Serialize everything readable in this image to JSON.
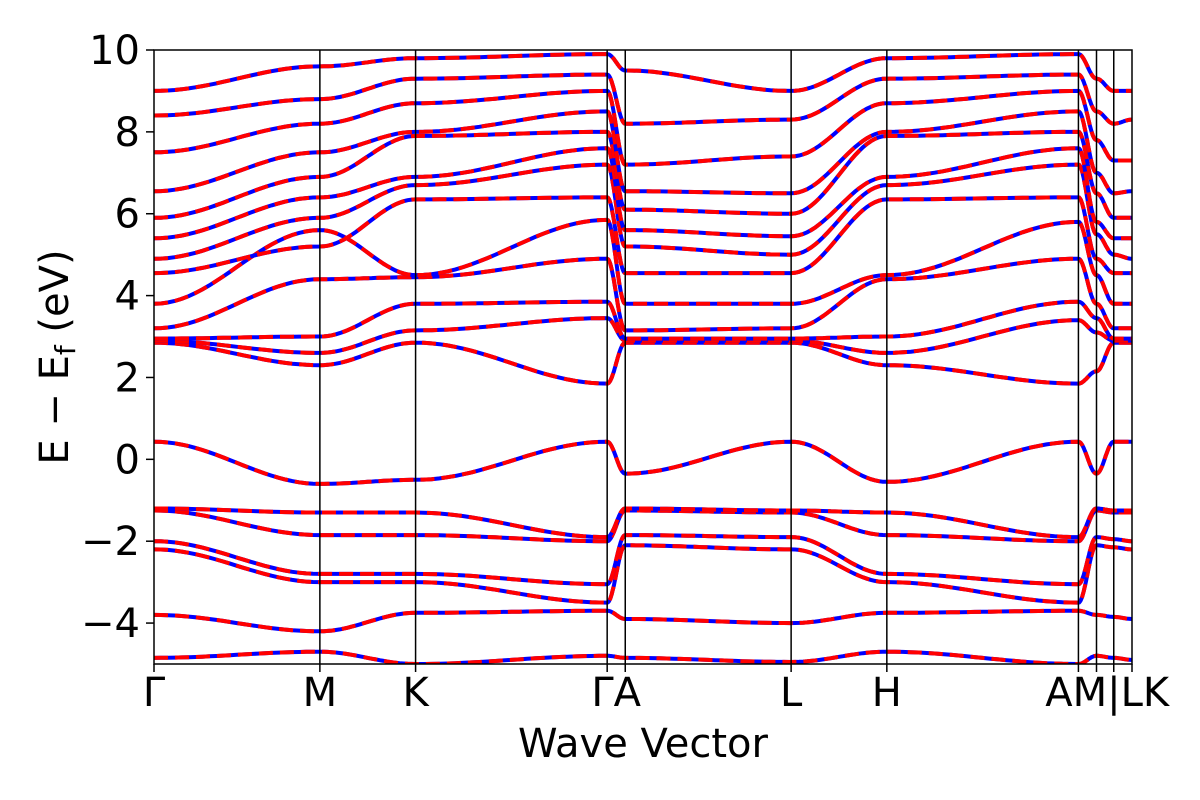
{
  "chart_data": {
    "type": "line",
    "xlabel": "Wave Vector",
    "ylabel": "E − E_f (eV)",
    "ylabel_main": "E − E",
    "ylabel_sub": "f",
    "ylabel_unit": " (eV)",
    "ylim": [
      -5,
      10
    ],
    "yticks": [
      -4,
      -2,
      0,
      2,
      4,
      6,
      8,
      10
    ],
    "ytick_labels": [
      "−4",
      "−2",
      "0",
      "2",
      "4",
      "6",
      "8",
      "10"
    ],
    "high_symmetry_points": [
      {
        "label": "Γ",
        "x": 0.0
      },
      {
        "label": "M",
        "x": 1.0
      },
      {
        "label": "K",
        "x": 1.577
      },
      {
        "label": "Γ",
        "x": 2.732
      },
      {
        "label": "A",
        "x": 2.841
      },
      {
        "label": "L",
        "x": 3.841
      },
      {
        "label": "H",
        "x": 4.418
      },
      {
        "label": "A",
        "x": 5.573
      },
      {
        "label": "M",
        "x": 5.682
      },
      {
        "label": "L",
        "x": 5.786
      },
      {
        "label": "K",
        "x": 5.896
      }
    ],
    "xtick_labels": [
      "Γ",
      "M",
      "K",
      "ΓA",
      "L",
      "H",
      "AM|LK"
    ],
    "grid": false,
    "series": [
      {
        "name": "",
        "color": "#0000ff",
        "style": "solid"
      },
      {
        "name": "",
        "color": "#ff0000",
        "style": "dashed"
      }
    ],
    "bands": [
      [
        -4.85,
        -4.7,
        -5.0,
        -4.8,
        -4.85,
        -4.95,
        -4.7,
        -5.0,
        -4.8,
        -4.85,
        -4.9
      ],
      [
        -3.8,
        -4.2,
        -3.75,
        -3.7,
        -3.9,
        -4.0,
        -3.75,
        -3.7,
        -3.8,
        -3.85,
        -3.9
      ],
      [
        -2.2,
        -3.0,
        -3.0,
        -3.5,
        -2.1,
        -2.2,
        -3.0,
        -3.5,
        -2.1,
        -2.15,
        -2.2
      ],
      [
        -2.0,
        -2.8,
        -2.8,
        -3.05,
        -1.85,
        -1.9,
        -2.8,
        -3.05,
        -1.9,
        -1.95,
        -2.0
      ],
      [
        -1.25,
        -1.85,
        -1.85,
        -2.0,
        -1.25,
        -1.3,
        -1.85,
        -2.0,
        -1.25,
        -1.3,
        -1.3
      ],
      [
        -1.2,
        -1.3,
        -1.3,
        -1.9,
        -1.2,
        -1.25,
        -1.3,
        -1.9,
        -1.2,
        -1.25,
        -1.25
      ],
      [
        0.43,
        -0.6,
        -0.5,
        0.43,
        -0.35,
        0.43,
        -0.55,
        0.43,
        -0.35,
        0.43,
        0.43
      ],
      [
        2.85,
        2.3,
        2.85,
        1.85,
        2.85,
        2.85,
        2.3,
        1.85,
        2.15,
        2.85,
        2.85
      ],
      [
        2.9,
        2.6,
        3.15,
        3.45,
        2.9,
        2.9,
        2.6,
        3.4,
        3.1,
        2.9,
        2.9
      ],
      [
        2.95,
        3.0,
        3.8,
        3.85,
        2.95,
        2.95,
        3.0,
        3.85,
        3.45,
        2.95,
        2.95
      ],
      [
        3.2,
        4.4,
        4.45,
        4.9,
        3.15,
        3.2,
        4.4,
        4.9,
        3.8,
        3.2,
        3.2
      ],
      [
        3.8,
        5.6,
        4.5,
        5.85,
        3.8,
        3.8,
        4.5,
        5.8,
        4.5,
        3.8,
        3.8
      ],
      [
        4.55,
        5.2,
        6.35,
        6.4,
        4.55,
        4.55,
        6.35,
        6.4,
        4.9,
        4.55,
        4.55
      ],
      [
        4.9,
        5.9,
        6.7,
        7.2,
        5.2,
        5.0,
        6.7,
        7.2,
        5.5,
        5.0,
        4.9
      ],
      [
        5.4,
        6.4,
        6.9,
        7.6,
        5.6,
        5.45,
        6.9,
        7.6,
        5.8,
        5.4,
        5.4
      ],
      [
        5.9,
        6.9,
        7.9,
        8.0,
        6.1,
        6.0,
        7.9,
        8.0,
        6.5,
        5.9,
        5.9
      ],
      [
        6.55,
        7.5,
        8.0,
        8.5,
        6.55,
        6.5,
        8.0,
        8.5,
        7.0,
        6.5,
        6.55
      ],
      [
        7.5,
        8.2,
        8.7,
        9.0,
        7.2,
        7.4,
        8.7,
        9.0,
        7.8,
        7.3,
        7.3
      ],
      [
        8.4,
        8.8,
        9.3,
        9.4,
        8.2,
        8.3,
        9.3,
        9.4,
        8.5,
        8.2,
        8.3
      ],
      [
        9.0,
        9.6,
        9.8,
        9.9,
        9.5,
        9.0,
        9.8,
        9.9,
        9.3,
        9.0,
        9.0
      ]
    ]
  }
}
